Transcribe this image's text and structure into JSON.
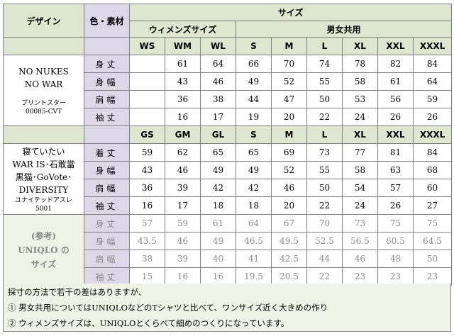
{
  "headers": {
    "design": "デザイン",
    "material": "色・素材",
    "size": "サイズ",
    "womens": "ウィメンズサイズ",
    "unisex": "男女共用"
  },
  "section1": {
    "design_lines": [
      "NO NUKES",
      "NO WAR"
    ],
    "fabric_lines": [
      "プリントスター",
      "00085-CVT"
    ],
    "sizes": [
      "WS",
      "WM",
      "WL",
      "S",
      "M",
      "L",
      "XL",
      "XXL",
      "XXXL"
    ],
    "rows": [
      {
        "label": "身丈",
        "values": [
          "",
          "61",
          "64",
          "66",
          "70",
          "74",
          "78",
          "82",
          "84"
        ]
      },
      {
        "label": "身幅",
        "values": [
          "",
          "43",
          "46",
          "49",
          "52",
          "55",
          "58",
          "61",
          "64"
        ]
      },
      {
        "label": "肩幅",
        "values": [
          "",
          "36",
          "38",
          "44",
          "47",
          "50",
          "53",
          "56",
          "59"
        ]
      },
      {
        "label": "袖丈",
        "values": [
          "",
          "16",
          "17",
          "19",
          "20",
          "22",
          "24",
          "26",
          "26"
        ]
      }
    ]
  },
  "section2": {
    "design_lines": [
      "寝ていたい",
      "WAR IS･石敢當",
      "黒猫･GoVote･",
      "DIVERSITY"
    ],
    "fabric_lines": [
      "ユナイテッドアスレ",
      "5001"
    ],
    "sizes": [
      "GS",
      "GM",
      "GL",
      "S",
      "M",
      "L",
      "XL",
      "XXL",
      "XXXL"
    ],
    "rows": [
      {
        "label": "着丈",
        "values": [
          "59",
          "62",
          "65",
          "65",
          "69",
          "73",
          "77",
          "81",
          "84"
        ]
      },
      {
        "label": "身幅",
        "values": [
          "43",
          "46",
          "49",
          "49",
          "52",
          "55",
          "58",
          "63",
          "68"
        ]
      },
      {
        "label": "肩幅",
        "values": [
          "36",
          "39",
          "42",
          "42",
          "46",
          "50",
          "54",
          "57",
          "60"
        ]
      },
      {
        "label": "袖丈",
        "values": [
          "16",
          "17",
          "18",
          "18",
          "20",
          "22",
          "24",
          "26",
          "27"
        ]
      }
    ]
  },
  "section3": {
    "ref_lines": [
      "(参考)",
      "UNIQLO の",
      "サイズ"
    ],
    "rows": [
      {
        "label": "身丈",
        "values": [
          "57",
          "59",
          "61",
          "64",
          "67",
          "70",
          "73",
          "75",
          "75"
        ]
      },
      {
        "label": "身幅",
        "values": [
          "43.5",
          "46",
          "49",
          "46.5",
          "49.5",
          "52.5",
          "56.5",
          "60.5",
          "64.5"
        ]
      },
      {
        "label": "肩幅",
        "values": [
          "38",
          "39",
          "40",
          "41",
          "42.5",
          "44",
          "46",
          "48",
          "50"
        ]
      },
      {
        "label": "袖丈",
        "values": [
          "15",
          "16",
          "16",
          "19.5",
          "20.5",
          "22",
          "23",
          "23",
          "23"
        ]
      }
    ]
  },
  "notes": [
    "採寸の方法で若干の差はありますが、",
    "① 男女共用についてはUNIQLOなどのTシャツと比べて、ワンサイズ近く大きめの作り",
    "② ウィメンズサイズは、UNIQLOとくらべて細めのつくりになっています。"
  ]
}
